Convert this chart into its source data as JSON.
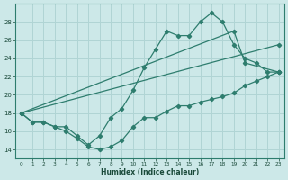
{
  "xlabel": "Humidex (Indice chaleur)",
  "bg_color": "#cce8e8",
  "grid_color": "#b0d4d4",
  "line_color": "#2e7d6e",
  "xlim": [
    -0.5,
    23.5
  ],
  "ylim": [
    13,
    30
  ],
  "yticks": [
    14,
    16,
    18,
    20,
    22,
    24,
    26,
    28
  ],
  "xticks": [
    0,
    1,
    2,
    3,
    4,
    5,
    6,
    7,
    8,
    9,
    10,
    11,
    12,
    13,
    14,
    15,
    16,
    17,
    18,
    19,
    20,
    21,
    22,
    23
  ],
  "series_zigzag_x": [
    0,
    1,
    2,
    3,
    4,
    5,
    6,
    7,
    8,
    9,
    10,
    11,
    12,
    13,
    14,
    15,
    16,
    17,
    18,
    19,
    20,
    21,
    22,
    23
  ],
  "series_zigzag_y": [
    18.0,
    17.0,
    17.0,
    16.5,
    16.0,
    15.2,
    14.3,
    14.0,
    14.3,
    15.0,
    16.5,
    17.5,
    17.5,
    18.2,
    18.8,
    18.8,
    19.2,
    19.5,
    19.8,
    20.2,
    21.0,
    21.5,
    22.0,
    22.5
  ],
  "series_peak_x": [
    0,
    1,
    2,
    3,
    4,
    5,
    6,
    7,
    8,
    9,
    10,
    11,
    12,
    13,
    14,
    15,
    16,
    17,
    18,
    19,
    20,
    21,
    22,
    23
  ],
  "series_peak_y": [
    18.0,
    17.0,
    17.0,
    16.5,
    16.5,
    15.5,
    14.5,
    15.5,
    17.5,
    18.5,
    20.5,
    23.0,
    25.0,
    27.0,
    26.5,
    26.5,
    28.0,
    29.0,
    28.0,
    25.5,
    24.0,
    23.5,
    22.5,
    22.5
  ],
  "series_line1_x": [
    0,
    23
  ],
  "series_line1_y": [
    18.0,
    25.5
  ],
  "series_line2_x": [
    0,
    19,
    20,
    23
  ],
  "series_line2_y": [
    18.0,
    27.0,
    23.5,
    22.5
  ]
}
